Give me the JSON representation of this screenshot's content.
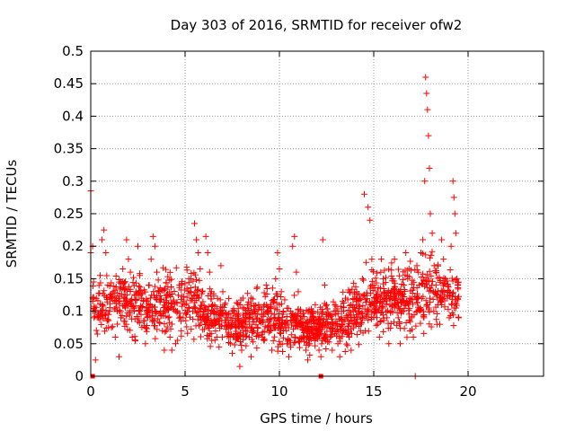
{
  "chart_data": {
    "type": "scatter",
    "title": "Day 303 of 2016, SRMTID for receiver ofw2",
    "xlabel": "GPS time / hours",
    "ylabel": "SRMTID / TECUs",
    "xlim": [
      0,
      24
    ],
    "ylim": [
      0,
      0.5
    ],
    "x_ticks": [
      0,
      5,
      10,
      15,
      20
    ],
    "x_tick_labels": [
      "0",
      "5",
      "10",
      "15",
      "20"
    ],
    "y_ticks": [
      0,
      0.05,
      0.1,
      0.15,
      0.2,
      0.25,
      0.3,
      0.35,
      0.4,
      0.45,
      0.5
    ],
    "y_tick_labels": [
      "0",
      "0.05",
      "0.1",
      "0.15",
      "0.2",
      "0.25",
      "0.3",
      "0.35",
      "0.4",
      "0.45",
      "0.5"
    ],
    "grid": true,
    "marker": "+",
    "color": "#ff0000",
    "series": [
      {
        "name": "SRMTID",
        "points": [
          [
            0.0,
            0.19
          ],
          [
            0.0,
            0.285
          ],
          [
            0.1,
            0.2
          ],
          [
            0.15,
            0.145
          ],
          [
            0.2,
            0.1
          ],
          [
            0.25,
            0.025
          ],
          [
            0.3,
            0.12
          ],
          [
            0.35,
            0.065
          ],
          [
            0.4,
            0.09
          ],
          [
            0.5,
            0.155
          ],
          [
            0.6,
            0.21
          ],
          [
            0.7,
            0.225
          ],
          [
            0.8,
            0.19
          ],
          [
            0.9,
            0.14
          ],
          [
            1.0,
            0.1
          ],
          [
            1.1,
            0.075
          ],
          [
            1.2,
            0.13
          ],
          [
            1.3,
            0.06
          ],
          [
            1.4,
            0.1
          ],
          [
            1.5,
            0.03
          ],
          [
            1.6,
            0.09
          ],
          [
            1.7,
            0.165
          ],
          [
            1.8,
            0.12
          ],
          [
            1.9,
            0.21
          ],
          [
            2.0,
            0.18
          ],
          [
            2.1,
            0.16
          ],
          [
            2.2,
            0.06
          ],
          [
            2.3,
            0.1
          ],
          [
            2.4,
            0.13
          ],
          [
            2.5,
            0.2
          ],
          [
            2.6,
            0.155
          ],
          [
            2.7,
            0.12
          ],
          [
            2.8,
            0.085
          ],
          [
            2.9,
            0.05
          ],
          [
            3.0,
            0.105
          ],
          [
            3.1,
            0.14
          ],
          [
            3.2,
            0.18
          ],
          [
            3.3,
            0.215
          ],
          [
            3.4,
            0.2
          ],
          [
            3.5,
            0.16
          ],
          [
            3.6,
            0.13
          ],
          [
            3.7,
            0.1
          ],
          [
            3.8,
            0.07
          ],
          [
            3.9,
            0.04
          ],
          [
            4.0,
            0.07
          ],
          [
            4.1,
            0.09
          ],
          [
            4.2,
            0.06
          ],
          [
            4.3,
            0.04
          ],
          [
            4.4,
            0.115
          ],
          [
            4.5,
            0.05
          ],
          [
            4.6,
            0.1
          ],
          [
            4.7,
            0.14
          ],
          [
            4.8,
            0.07
          ],
          [
            4.9,
            0.09
          ],
          [
            5.0,
            0.11
          ],
          [
            5.1,
            0.135
          ],
          [
            5.2,
            0.15
          ],
          [
            5.3,
            0.13
          ],
          [
            5.4,
            0.1
          ],
          [
            5.5,
            0.235
          ],
          [
            5.6,
            0.21
          ],
          [
            5.7,
            0.19
          ],
          [
            5.8,
            0.165
          ],
          [
            5.9,
            0.13
          ],
          [
            6.0,
            0.1
          ],
          [
            6.1,
            0.215
          ],
          [
            6.2,
            0.19
          ],
          [
            6.3,
            0.16
          ],
          [
            6.4,
            0.13
          ],
          [
            6.5,
            0.1
          ],
          [
            6.6,
            0.08
          ],
          [
            6.7,
            0.06
          ],
          [
            6.8,
            0.045
          ],
          [
            6.9,
            0.17
          ],
          [
            7.0,
            0.13
          ],
          [
            7.1,
            0.11
          ],
          [
            7.2,
            0.09
          ],
          [
            7.3,
            0.065
          ],
          [
            7.4,
            0.05
          ],
          [
            7.5,
            0.035
          ],
          [
            7.6,
            0.1
          ],
          [
            7.7,
            0.08
          ],
          [
            7.8,
            0.06
          ],
          [
            7.9,
            0.015
          ],
          [
            8.0,
            0.04
          ],
          [
            8.1,
            0.07
          ],
          [
            8.2,
            0.09
          ],
          [
            8.3,
            0.11
          ],
          [
            8.4,
            0.06
          ],
          [
            8.5,
            0.03
          ],
          [
            8.6,
            0.07
          ],
          [
            8.7,
            0.1
          ],
          [
            8.8,
            0.135
          ],
          [
            8.9,
            0.11
          ],
          [
            9.0,
            0.085
          ],
          [
            9.1,
            0.06
          ],
          [
            9.2,
            0.11
          ],
          [
            9.3,
            0.14
          ],
          [
            9.4,
            0.1
          ],
          [
            9.5,
            0.07
          ],
          [
            9.6,
            0.04
          ],
          [
            9.7,
            0.08
          ],
          [
            9.8,
            0.15
          ],
          [
            9.9,
            0.19
          ],
          [
            10.0,
            0.165
          ],
          [
            10.1,
            0.13
          ],
          [
            10.2,
            0.1
          ],
          [
            10.3,
            0.075
          ],
          [
            10.4,
            0.05
          ],
          [
            10.5,
            0.03
          ],
          [
            10.6,
            0.1
          ],
          [
            10.7,
            0.2
          ],
          [
            10.8,
            0.215
          ],
          [
            10.9,
            0.16
          ],
          [
            11.0,
            0.13
          ],
          [
            11.1,
            0.1
          ],
          [
            11.2,
            0.08
          ],
          [
            11.3,
            0.06
          ],
          [
            11.4,
            0.04
          ],
          [
            11.5,
            0.025
          ],
          [
            11.6,
            0.05
          ],
          [
            11.7,
            0.07
          ],
          [
            11.8,
            0.09
          ],
          [
            11.9,
            0.11
          ],
          [
            12.0,
            0.06
          ],
          [
            12.1,
            0.04
          ],
          [
            12.2,
            0.03
          ],
          [
            12.3,
            0.21
          ],
          [
            12.4,
            0.14
          ],
          [
            12.5,
            0.11
          ],
          [
            12.6,
            0.08
          ],
          [
            12.7,
            0.06
          ],
          [
            12.8,
            0.04
          ],
          [
            12.9,
            0.1
          ],
          [
            13.0,
            0.07
          ],
          [
            13.1,
            0.05
          ],
          [
            13.2,
            0.03
          ],
          [
            13.3,
            0.1
          ],
          [
            13.4,
            0.07
          ],
          [
            13.5,
            0.12
          ],
          [
            13.6,
            0.09
          ],
          [
            13.7,
            0.06
          ],
          [
            13.8,
            0.04
          ],
          [
            13.9,
            0.11
          ],
          [
            14.0,
            0.08
          ],
          [
            14.1,
            0.13
          ],
          [
            14.2,
            0.1
          ],
          [
            14.3,
            0.07
          ],
          [
            14.4,
            0.15
          ],
          [
            14.5,
            0.28
          ],
          [
            14.6,
            0.175
          ],
          [
            14.7,
            0.26
          ],
          [
            14.8,
            0.24
          ],
          [
            14.9,
            0.18
          ],
          [
            15.0,
            0.14
          ],
          [
            15.1,
            0.1
          ],
          [
            15.2,
            0.08
          ],
          [
            15.3,
            0.06
          ],
          [
            15.4,
            0.18
          ],
          [
            15.5,
            0.15
          ],
          [
            15.6,
            0.12
          ],
          [
            15.7,
            0.09
          ],
          [
            15.8,
            0.05
          ],
          [
            15.9,
            0.1
          ],
          [
            16.0,
            0.15
          ],
          [
            16.1,
            0.18
          ],
          [
            16.2,
            0.12
          ],
          [
            16.3,
            0.09
          ],
          [
            16.4,
            0.05
          ],
          [
            16.5,
            0.1
          ],
          [
            16.6,
            0.14
          ],
          [
            16.7,
            0.19
          ],
          [
            16.8,
            0.15
          ],
          [
            16.9,
            0.12
          ],
          [
            17.0,
            0.09
          ],
          [
            17.1,
            0.06
          ],
          [
            17.2,
            0.0
          ],
          [
            17.3,
            0.1
          ],
          [
            17.4,
            0.14
          ],
          [
            17.5,
            0.19
          ],
          [
            17.6,
            0.21
          ],
          [
            17.7,
            0.3
          ],
          [
            17.75,
            0.46
          ],
          [
            17.8,
            0.435
          ],
          [
            17.85,
            0.41
          ],
          [
            17.9,
            0.37
          ],
          [
            17.95,
            0.32
          ],
          [
            18.0,
            0.25
          ],
          [
            18.1,
            0.22
          ],
          [
            18.2,
            0.17
          ],
          [
            18.3,
            0.14
          ],
          [
            18.4,
            0.11
          ],
          [
            18.5,
            0.08
          ],
          [
            18.6,
            0.21
          ],
          [
            18.7,
            0.18
          ],
          [
            18.8,
            0.15
          ],
          [
            18.9,
            0.12
          ],
          [
            19.0,
            0.09
          ],
          [
            19.1,
            0.2
          ],
          [
            19.2,
            0.3
          ],
          [
            19.25,
            0.275
          ],
          [
            19.3,
            0.25
          ],
          [
            19.35,
            0.22
          ],
          [
            19.4,
            0.15
          ],
          [
            19.45,
            0.12
          ],
          [
            19.5,
            0.09
          ]
        ]
      }
    ],
    "band_min": [
      0.06,
      0.05,
      0.05,
      0.04,
      0.05,
      0.05,
      0.05,
      0.05,
      0.05,
      0.04,
      0.04,
      0.04,
      0.04,
      0.05,
      0.05,
      0.05,
      0.04,
      0.04,
      0.04,
      0.05,
      0.05,
      0.05,
      0.04,
      0.04,
      0.04,
      0.04,
      0.05,
      0.05,
      0.05,
      0.04,
      0.03,
      0.03,
      0.02,
      0.03,
      0.03,
      0.02,
      0.03,
      0.03,
      0.03,
      0.02,
      0.02,
      0.02,
      0.03,
      0.03,
      0.03,
      0.02,
      0.02,
      0.02,
      0.03,
      0.03,
      0.03,
      0.03,
      0.03,
      0.03,
      0.03,
      0.04,
      0.04,
      0.05,
      0.05,
      0.05,
      0.05,
      0.05,
      0.05,
      0.06,
      0.06,
      0.05,
      0.05,
      0.05,
      0.05,
      0.05,
      0.05,
      0.05,
      0.06,
      0.07,
      0.07,
      0.07,
      0.06,
      0.06
    ],
    "band_max": [
      0.16,
      0.15,
      0.17,
      0.18,
      0.19,
      0.18,
      0.18,
      0.17,
      0.18,
      0.18,
      0.17,
      0.17,
      0.16,
      0.16,
      0.18,
      0.19,
      0.19,
      0.18,
      0.17,
      0.19,
      0.2,
      0.19,
      0.17,
      0.16,
      0.15,
      0.14,
      0.14,
      0.13,
      0.13,
      0.13,
      0.14,
      0.14,
      0.14,
      0.15,
      0.15,
      0.16,
      0.16,
      0.16,
      0.15,
      0.15,
      0.14,
      0.13,
      0.13,
      0.13,
      0.13,
      0.13,
      0.13,
      0.12,
      0.12,
      0.13,
      0.13,
      0.13,
      0.14,
      0.14,
      0.15,
      0.16,
      0.16,
      0.17,
      0.18,
      0.18,
      0.18,
      0.18,
      0.19,
      0.19,
      0.19,
      0.19,
      0.19,
      0.2,
      0.2,
      0.2,
      0.21,
      0.21,
      0.2,
      0.2,
      0.19,
      0.19,
      0.18,
      0.18
    ],
    "band_x_range": [
      0.1,
      19.5
    ],
    "band_count": 1500,
    "band_seed": 303,
    "zero_markers_x": [
      0.1,
      12.2
    ]
  }
}
